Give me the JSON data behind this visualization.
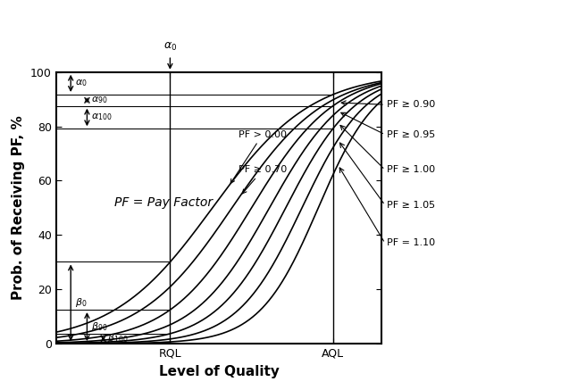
{
  "title": "",
  "xlabel": "Level of Quality",
  "ylabel": "Prob. of Receiving PF, %",
  "ylim": [
    0,
    100
  ],
  "xlim": [
    0,
    10
  ],
  "rql_x": 3.5,
  "aql_x": 8.5,
  "curve_params": [
    [
      4.8,
      0.65
    ],
    [
      5.4,
      0.7
    ],
    [
      6.0,
      0.78
    ],
    [
      6.55,
      0.85
    ],
    [
      7.05,
      0.92
    ],
    [
      7.55,
      1.0
    ],
    [
      8.05,
      1.1
    ]
  ],
  "curve_labels_right": [
    "PF ≥ 0.90",
    "PF ≥ 0.95",
    "PF ≥ 1.00",
    "PF ≥ 1.05",
    "PF = 1.10"
  ],
  "label_pf000": "PF > 0.00",
  "label_pf070": "PF ≥ 0.70",
  "pf_note": "PF = Pay Factor",
  "line_color": "#000000",
  "bg_color": "#ffffff",
  "fontsize_axis_label": 11,
  "fontsize_tick": 9,
  "fontsize_annotation": 8
}
